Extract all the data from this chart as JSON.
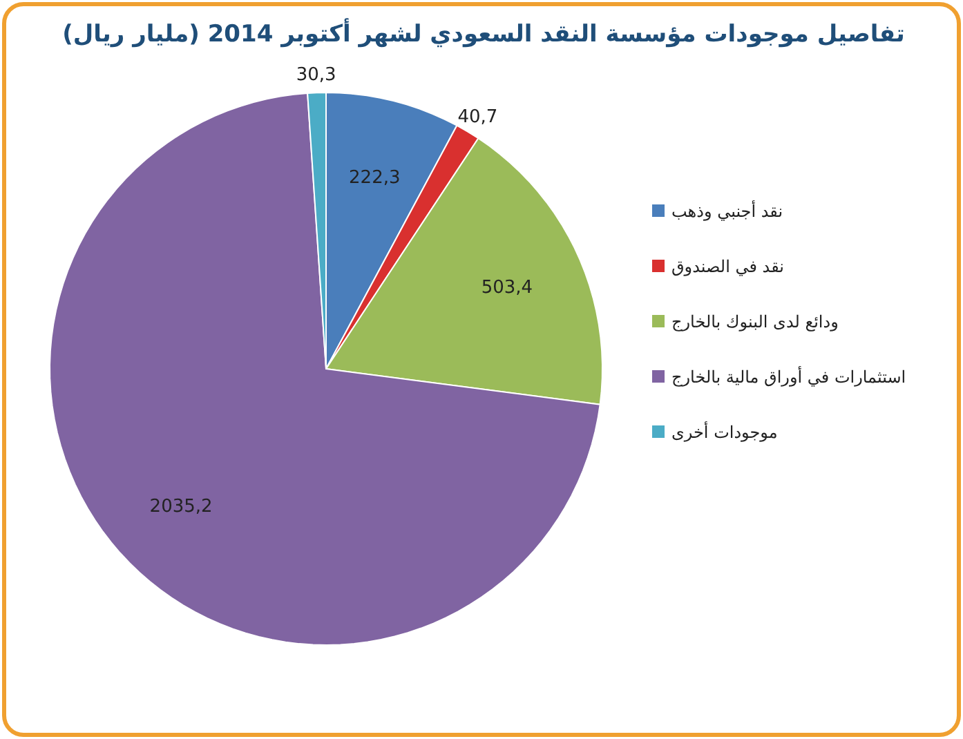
{
  "chart_data": {
    "type": "pie",
    "title": "تفاصيل موجودات مؤسسة النقد السعودي لشهر أكتوبر 2014 (مليار ريال)",
    "categories": [
      "نقد أجنبي وذهب",
      "نقد في الصندوق",
      "ودائع لدى البنوك بالخارج",
      "استثمارات في أوراق مالية بالخارج",
      "موجودات أخرى"
    ],
    "values": [
      222.3,
      40.7,
      503.4,
      2035.2,
      30.3
    ],
    "colors": [
      "#4a7ebb",
      "#d9302f",
      "#9bbb59",
      "#8064a2",
      "#4bacc6"
    ],
    "value_labels": [
      "222,3",
      "40,7",
      "503,4",
      "2035,2",
      "30,3"
    ],
    "legend": "right"
  }
}
